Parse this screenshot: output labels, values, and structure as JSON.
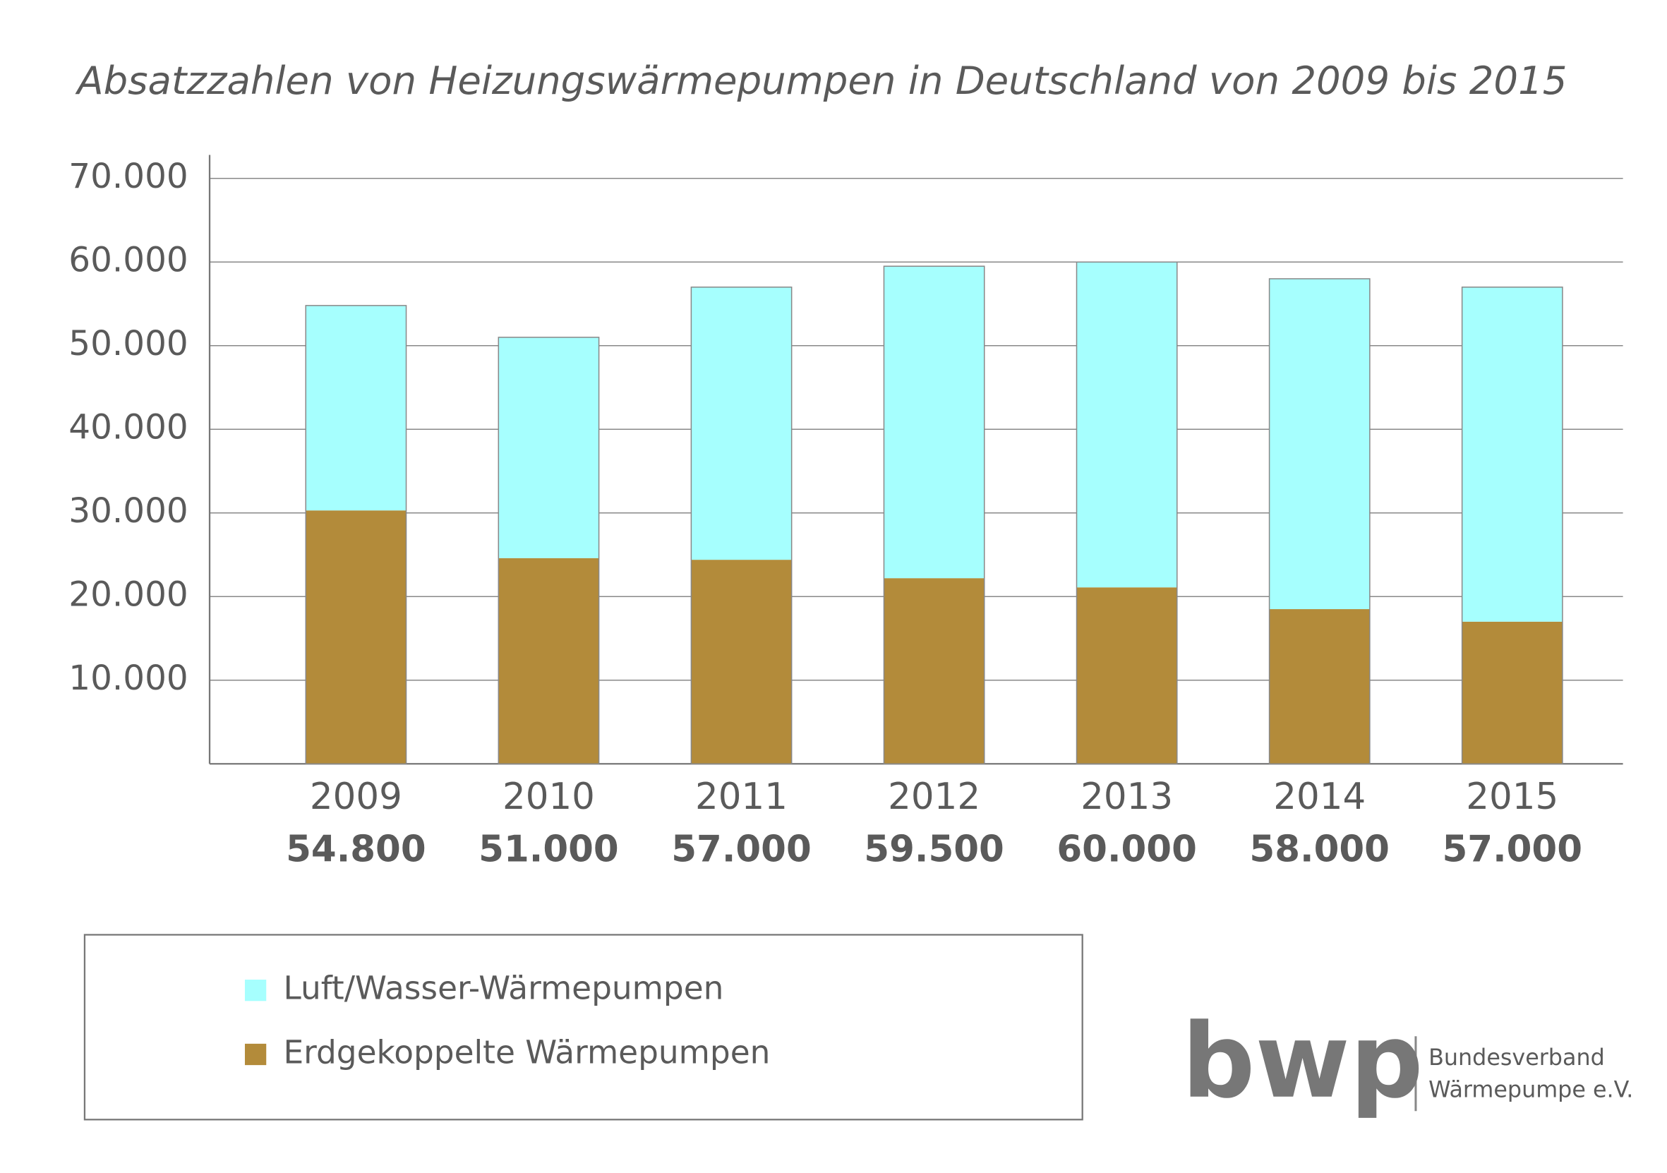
{
  "chart_data": {
    "type": "stacked-bar",
    "title": "Absatzzahlen von Heizungswärmepumpen in Deutschland von 2009 bis 2015",
    "categories": [
      "2009",
      "2010",
      "2011",
      "2012",
      "2013",
      "2014",
      "2015"
    ],
    "series": [
      {
        "name": "Erdgekoppelte Wärmepumpen",
        "color": "#b38b3a",
        "values": [
          30300,
          24600,
          24400,
          22200,
          21100,
          18500,
          17000
        ]
      },
      {
        "name": "Luft/Wasser-Wärmepumpen",
        "color": "#a6fffe",
        "values": [
          24500,
          26400,
          32600,
          37300,
          38900,
          39500,
          40000
        ]
      }
    ],
    "totals": {
      "values": [
        54800,
        51000,
        57000,
        59500,
        60000,
        58000,
        57000
      ],
      "value_labels": [
        "54.800",
        "51.000",
        "57.000",
        "59.500",
        "60.000",
        "58.000",
        "57.000"
      ]
    },
    "ylim": [
      0,
      70000
    ],
    "yticks": [
      {
        "value": 10000,
        "label": "10.000"
      },
      {
        "value": 20000,
        "label": "20.000"
      },
      {
        "value": 30000,
        "label": "30.000"
      },
      {
        "value": 40000,
        "label": "40.000"
      },
      {
        "value": 50000,
        "label": "50.000"
      },
      {
        "value": 60000,
        "label": "60.000"
      },
      {
        "value": 70000,
        "label": "70.000"
      }
    ],
    "grid": true,
    "legend_order": [
      1,
      0
    ]
  },
  "logo": {
    "mark": "bwp",
    "lines": [
      "Bundesverband",
      "Wärmepumpe e.V."
    ]
  }
}
